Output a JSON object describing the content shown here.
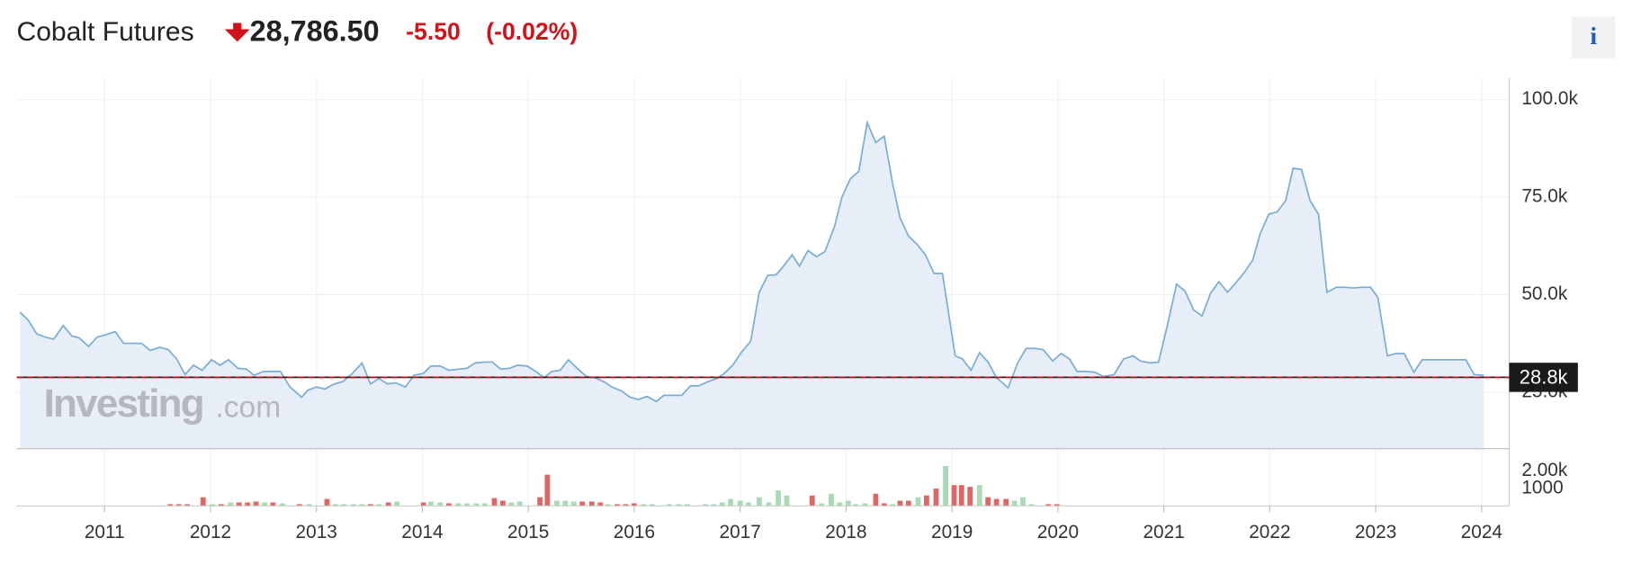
{
  "header": {
    "title": "Cobalt Futures",
    "price": "28,786.50",
    "change": "-5.50",
    "change_percent": "(-0.02%)",
    "info_button": "i"
  },
  "watermark": {
    "brand": "Investing",
    "suffix": ".com"
  },
  "chart_data": [
    {
      "type": "area",
      "color": "#7aaed6",
      "fill": "#e8eef7",
      "grid": true,
      "xlim": [
        2010.17,
        2024.26
      ],
      "xticks": [
        2011,
        2012,
        2013,
        2014,
        2015,
        2016,
        2017,
        2018,
        2019,
        2020,
        2021,
        2022,
        2023,
        2024
      ],
      "ylim": [
        10500,
        105500
      ],
      "yticks": [
        {
          "value": 25000,
          "label": "25.0k"
        },
        {
          "value": 50000,
          "label": "50.0k"
        },
        {
          "value": 75000,
          "label": "75.0k"
        },
        {
          "value": 100000,
          "label": "100.0k"
        }
      ],
      "price_line": {
        "value": 28786.5,
        "label": "28.8k",
        "color": "#c0121b"
      },
      "x": [
        2010.2,
        2010.28,
        2010.36,
        2010.44,
        2010.52,
        2010.61,
        2010.69,
        2010.76,
        2010.85,
        2010.93,
        2011.01,
        2011.1,
        2011.18,
        2011.27,
        2011.35,
        2011.43,
        2011.52,
        2011.6,
        2011.68,
        2011.76,
        2011.84,
        2011.92,
        2012.01,
        2012.09,
        2012.17,
        2012.26,
        2012.34,
        2012.41,
        2012.5,
        2012.58,
        2012.66,
        2012.75,
        2012.86,
        2012.92,
        2013.0,
        2013.08,
        2013.17,
        2013.25,
        2013.34,
        2013.43,
        2013.51,
        2013.59,
        2013.67,
        2013.75,
        2013.84,
        2013.92,
        2014.01,
        2014.08,
        2014.17,
        2014.25,
        2014.34,
        2014.42,
        2014.5,
        2014.59,
        2014.66,
        2014.74,
        2014.82,
        2014.9,
        2014.99,
        2015.07,
        2015.15,
        2015.22,
        2015.3,
        2015.38,
        2015.47,
        2015.55,
        2015.63,
        2015.71,
        2015.79,
        2015.88,
        2015.96,
        2016.04,
        2016.12,
        2016.21,
        2016.28,
        2016.36,
        2016.45,
        2016.53,
        2016.61,
        2016.7,
        2016.78,
        2016.85,
        2016.93,
        2017.01,
        2017.1,
        2017.18,
        2017.26,
        2017.34,
        2017.41,
        2017.49,
        2017.56,
        2017.64,
        2017.72,
        2017.8,
        2017.89,
        2017.96,
        2018.04,
        2018.12,
        2018.2,
        2018.28,
        2018.36,
        2018.44,
        2018.51,
        2018.59,
        2018.67,
        2018.75,
        2018.83,
        2018.91,
        2019.03,
        2019.1,
        2019.18,
        2019.26,
        2019.34,
        2019.42,
        2019.53,
        2019.62,
        2019.7,
        2019.78,
        2019.86,
        2019.95,
        2020.03,
        2020.11,
        2020.18,
        2020.27,
        2020.35,
        2020.43,
        2020.53,
        2020.62,
        2020.71,
        2020.78,
        2020.87,
        2020.95,
        2021.03,
        2021.12,
        2021.2,
        2021.28,
        2021.36,
        2021.44,
        2021.52,
        2021.6,
        2021.68,
        2021.76,
        2021.84,
        2021.91,
        2021.99,
        2022.07,
        2022.15,
        2022.22,
        2022.3,
        2022.38,
        2022.46,
        2022.54,
        2022.63,
        2022.71,
        2022.79,
        2022.87,
        2022.95,
        2023.02,
        2023.11,
        2023.19,
        2023.27,
        2023.36,
        2023.44,
        2023.52,
        2023.59,
        2023.68,
        2023.76,
        2023.85,
        2023.93,
        2024.02
      ],
      "values": [
        45500,
        43400,
        39900,
        39100,
        38600,
        42100,
        39400,
        38900,
        36700,
        39100,
        39700,
        40500,
        37500,
        37500,
        37500,
        35700,
        36500,
        35900,
        33500,
        29500,
        31900,
        30600,
        33300,
        31900,
        33300,
        31100,
        30900,
        29300,
        30300,
        30300,
        30300,
        26300,
        23700,
        25500,
        26300,
        25800,
        27100,
        27700,
        29800,
        32500,
        27100,
        28500,
        27100,
        27400,
        26300,
        29300,
        29800,
        31700,
        31700,
        30600,
        30900,
        31100,
        32500,
        32700,
        32700,
        30900,
        31100,
        31900,
        31700,
        30300,
        28700,
        30300,
        30600,
        33300,
        30900,
        29000,
        28700,
        27700,
        26300,
        25300,
        23700,
        23100,
        23900,
        22600,
        24200,
        24200,
        24200,
        26600,
        26600,
        27700,
        28500,
        29800,
        31900,
        35100,
        38100,
        50600,
        54900,
        55100,
        57300,
        60200,
        57300,
        61300,
        59700,
        61000,
        67400,
        74900,
        79700,
        81600,
        94100,
        89000,
        90600,
        78400,
        69600,
        65000,
        62900,
        60200,
        55400,
        55400,
        34300,
        33500,
        30600,
        35100,
        32700,
        28700,
        26100,
        32500,
        36200,
        36200,
        35900,
        33000,
        34900,
        33500,
        30300,
        30300,
        30100,
        29000,
        29500,
        33500,
        34300,
        33000,
        32500,
        32700,
        41800,
        52700,
        50900,
        46100,
        44500,
        50300,
        53300,
        50600,
        53000,
        55700,
        58900,
        65600,
        70600,
        71200,
        74100,
        82400,
        82100,
        74100,
        70600,
        50600,
        51900,
        51900,
        51700,
        51900,
        51900,
        49300,
        34300,
        34900,
        34900,
        30100,
        33300,
        33300,
        33300,
        33300,
        33300,
        33300,
        29500,
        29300
      ]
    },
    {
      "type": "bar",
      "xlim": [
        2010.17,
        2024.26
      ],
      "xticks": [
        2011,
        2012,
        2013,
        2014,
        2015,
        2016,
        2017,
        2018,
        2019,
        2020,
        2021,
        2022,
        2023,
        2024
      ],
      "ylim": [
        0,
        3300
      ],
      "yticks": [
        1000,
        {
          "value": 2000,
          "label": "2.00k"
        }
      ],
      "series": [
        {
          "color": "#e06666",
          "x": [
            2011.62,
            2011.7,
            2011.78,
            2011.93,
            2012.1,
            2012.27,
            2012.35,
            2012.43,
            2012.59,
            2012.84,
            2013.1,
            2013.51,
            2013.68,
            2014.01,
            2014.25,
            2014.68,
            2014.76,
            2015.11,
            2015.18,
            2015.51,
            2015.6,
            2015.68,
            2015.84,
            2015.92,
            2016.0,
            2017.68,
            2018.28,
            2018.36,
            2018.51,
            2018.59,
            2018.76,
            2018.85,
            2019.02,
            2019.09,
            2019.17,
            2019.34,
            2019.42,
            2019.51,
            2019.91,
            2019.99
          ],
          "values": [
            100,
            100,
            100,
            500,
            100,
            200,
            200,
            250,
            200,
            100,
            400,
            100,
            200,
            200,
            150,
            450,
            300,
            500,
            1800,
            250,
            250,
            200,
            100,
            100,
            150,
            600,
            700,
            150,
            300,
            300,
            600,
            1000,
            1200,
            1200,
            1100,
            500,
            400,
            400,
            100,
            100
          ]
        },
        {
          "color": "#a8dbb5",
          "x": [
            2012.02,
            2012.19,
            2012.51,
            2012.68,
            2012.93,
            2013.18,
            2013.26,
            2013.35,
            2013.43,
            2013.59,
            2013.76,
            2014.08,
            2014.17,
            2014.34,
            2014.42,
            2014.51,
            2014.59,
            2014.84,
            2014.92,
            2015.27,
            2015.35,
            2015.43,
            2015.75,
            2016.09,
            2016.17,
            2016.33,
            2016.42,
            2016.5,
            2016.67,
            2016.75,
            2016.83,
            2016.91,
            2017.0,
            2017.08,
            2017.18,
            2017.27,
            2017.36,
            2017.44,
            2017.77,
            2017.86,
            2017.94,
            2018.02,
            2018.09,
            2018.18,
            2018.44,
            2018.68,
            2018.94,
            2019.26,
            2019.59,
            2019.67,
            2019.75
          ],
          "values": [
            100,
            200,
            200,
            150,
            100,
            100,
            100,
            100,
            100,
            100,
            250,
            250,
            200,
            150,
            150,
            150,
            150,
            200,
            250,
            300,
            300,
            250,
            100,
            100,
            100,
            100,
            100,
            100,
            100,
            100,
            200,
            400,
            300,
            200,
            500,
            200,
            900,
            600,
            150,
            700,
            200,
            300,
            100,
            150,
            100,
            500,
            2300,
            1200,
            300,
            500,
            100
          ]
        }
      ]
    }
  ]
}
